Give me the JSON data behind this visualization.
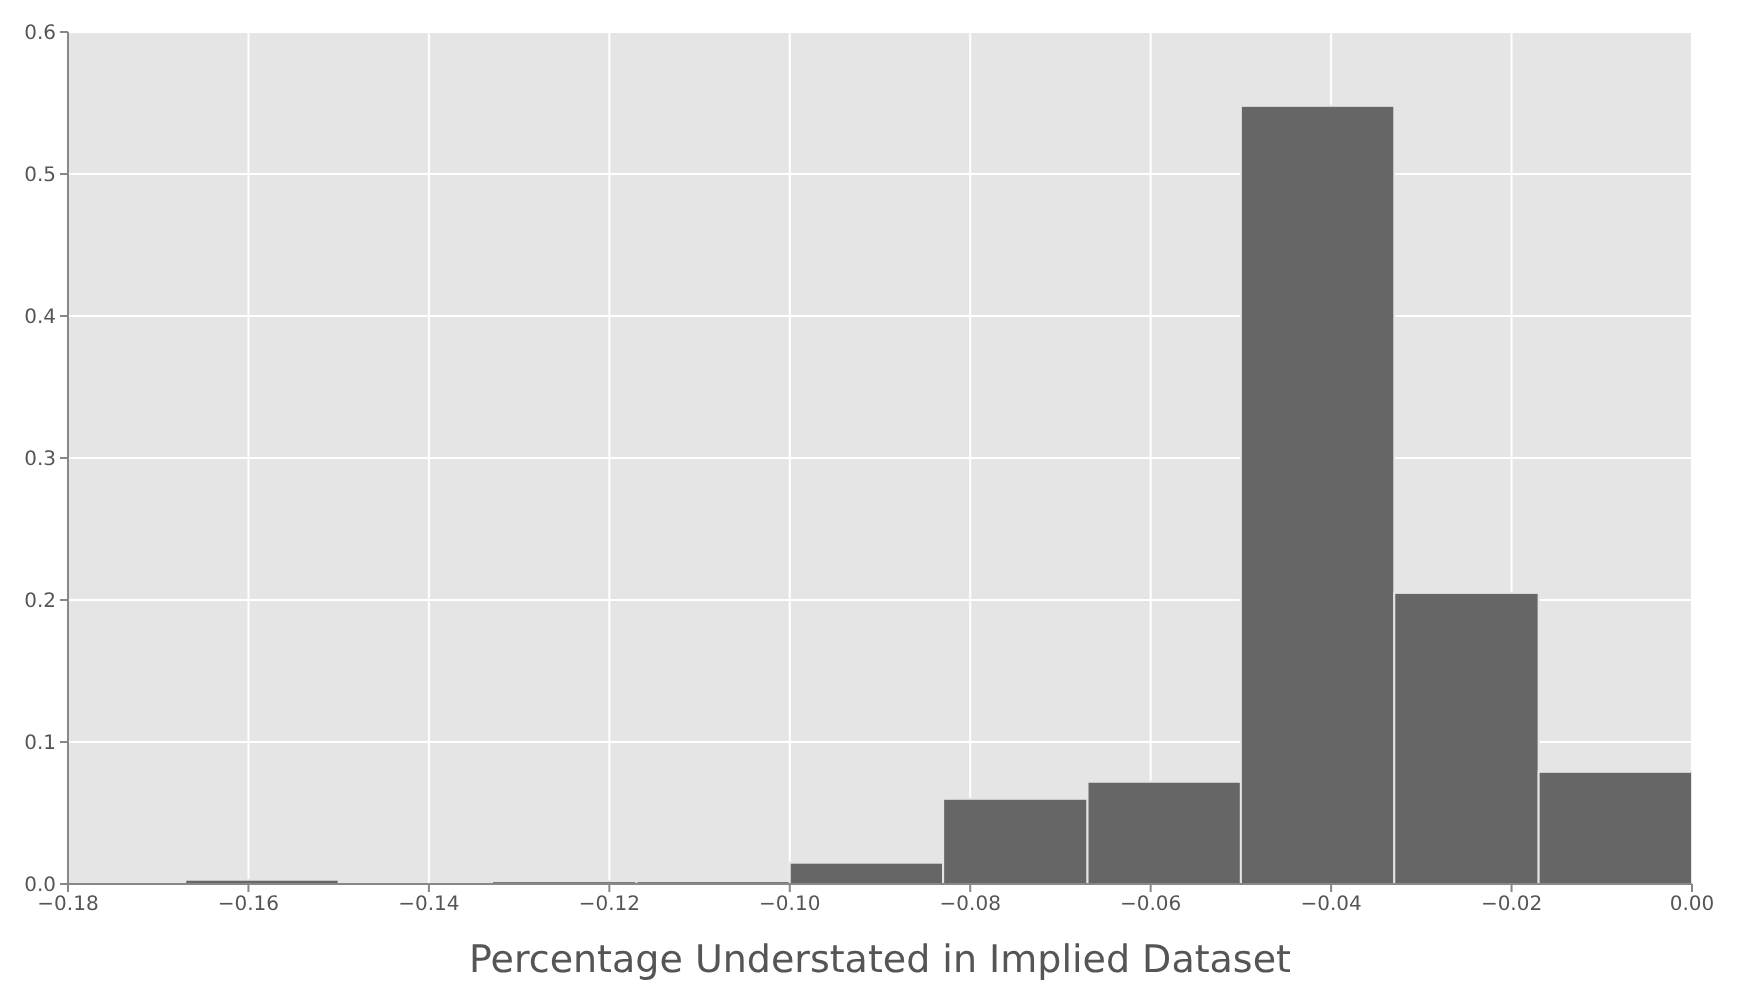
{
  "chart_data": {
    "type": "histogram",
    "xlabel": "Percentage Understated in Implied Dataset",
    "bins": [
      -0.167,
      -0.15,
      -0.133,
      -0.117,
      -0.1,
      -0.083,
      -0.067,
      -0.05,
      -0.033,
      -0.017,
      0.0
    ],
    "values": [
      0.003,
      0,
      0.002,
      0.002,
      0.015,
      0.06,
      0.072,
      0.548,
      0.205,
      0.079
    ],
    "color": "#666666",
    "xlim": [
      -0.18,
      0.0
    ],
    "xticks": [
      {
        "value": -0.18,
        "label": "−0.18"
      },
      {
        "value": -0.16,
        "label": "−0.16"
      },
      {
        "value": -0.14,
        "label": "−0.14"
      },
      {
        "value": -0.12,
        "label": "−0.12"
      },
      {
        "value": -0.1,
        "label": "−0.10"
      },
      {
        "value": -0.08,
        "label": "−0.08"
      },
      {
        "value": -0.06,
        "label": "−0.06"
      },
      {
        "value": -0.04,
        "label": "−0.04"
      },
      {
        "value": -0.02,
        "label": "−0.02"
      },
      {
        "value": 0.0,
        "label": "0.00"
      }
    ],
    "ylim": [
      0,
      0.6
    ],
    "yticks": [
      {
        "value": 0,
        "label": "0.0"
      },
      {
        "value": 0.1,
        "label": "0.1"
      },
      {
        "value": 0.2,
        "label": "0.2"
      },
      {
        "value": 0.3,
        "label": "0.3"
      },
      {
        "value": 0.4,
        "label": "0.4"
      },
      {
        "value": 0.5,
        "label": "0.5"
      },
      {
        "value": 0.6,
        "label": "0.6"
      }
    ],
    "grid": true
  }
}
